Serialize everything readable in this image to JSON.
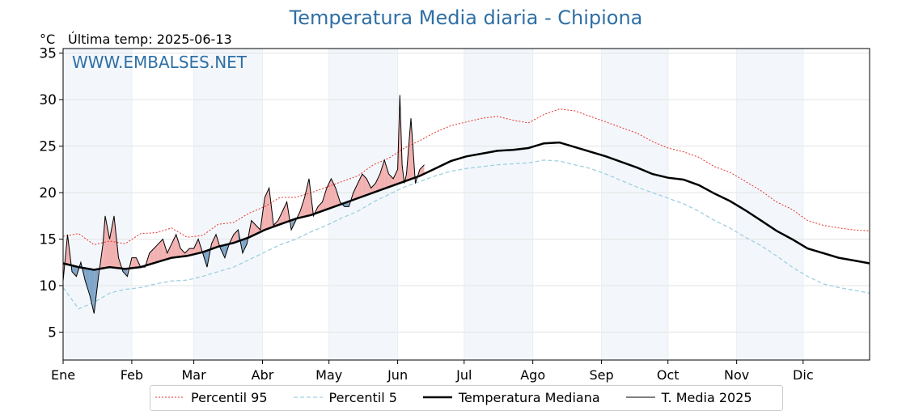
{
  "header": {
    "title": "Temperatura Media diaria - Chipiona",
    "unit": "°C",
    "last_temp": "Última temp: 2025-06-13",
    "watermark": "WWW.EMBALSES.NET"
  },
  "legend": {
    "p95": "Percentil 95",
    "p5": "Percentil 5",
    "median": "Temperatura Mediana",
    "current": "T. Media 2025"
  },
  "colors": {
    "p95": "#e8302a",
    "p5": "#9fd0e0",
    "median": "#000000",
    "current": "#000000",
    "above_fill": "#f2b1b1",
    "below_fill": "#7fa6c9",
    "month_band": "#f3f7fb",
    "title": "#2f6fa5"
  },
  "chart_data": {
    "type": "line",
    "title": "Temperatura Media diaria - Chipiona",
    "ylabel": "°C",
    "ylim": [
      2,
      35.5
    ],
    "xlim": [
      1,
      365
    ],
    "yticks": [
      5,
      10,
      15,
      20,
      25,
      30,
      35
    ],
    "months": [
      "Ene",
      "Feb",
      "Mar",
      "Abr",
      "May",
      "Jun",
      "Jul",
      "Ago",
      "Sep",
      "Oct",
      "Nov",
      "Dic"
    ],
    "month_start_days": [
      1,
      32,
      60,
      91,
      121,
      152,
      182,
      213,
      244,
      274,
      305,
      335
    ],
    "grid": true,
    "legend_position": "bottom",
    "series": [
      {
        "name": "Percentil 95",
        "style": "dotted",
        "x": [
          1,
          8,
          15,
          22,
          29,
          36,
          43,
          50,
          57,
          64,
          71,
          78,
          85,
          92,
          99,
          106,
          113,
          120,
          127,
          134,
          141,
          148,
          155,
          162,
          169,
          176,
          183,
          190,
          197,
          204,
          211,
          218,
          225,
          232,
          239,
          246,
          253,
          260,
          267,
          274,
          281,
          288,
          295,
          302,
          309,
          316,
          323,
          330,
          337,
          344,
          351,
          358,
          365
        ],
        "y": [
          15.3,
          15.6,
          14.4,
          14.8,
          14.5,
          15.6,
          15.7,
          16.2,
          15.2,
          15.4,
          16.6,
          16.8,
          17.8,
          18.5,
          19.5,
          19.5,
          20.0,
          20.6,
          21.2,
          21.8,
          23.0,
          23.7,
          24.8,
          25.6,
          26.5,
          27.2,
          27.6,
          28.0,
          28.2,
          27.8,
          27.5,
          28.4,
          29.0,
          28.8,
          28.2,
          27.6,
          27.0,
          26.4,
          25.5,
          24.8,
          24.4,
          23.8,
          22.8,
          22.2,
          21.2,
          20.2,
          19.0,
          18.2,
          17.0,
          16.5,
          16.2,
          16.0,
          15.9
        ]
      },
      {
        "name": "Percentil 5",
        "style": "dashed",
        "x": [
          1,
          8,
          15,
          22,
          29,
          36,
          43,
          50,
          57,
          64,
          71,
          78,
          85,
          92,
          99,
          106,
          113,
          120,
          127,
          134,
          141,
          148,
          155,
          162,
          169,
          176,
          183,
          190,
          197,
          204,
          211,
          218,
          225,
          232,
          239,
          246,
          253,
          260,
          267,
          274,
          281,
          288,
          295,
          302,
          309,
          316,
          323,
          330,
          337,
          344,
          351,
          358,
          365
        ],
        "y": [
          9.8,
          7.5,
          8.2,
          9.2,
          9.6,
          9.8,
          10.2,
          10.5,
          10.6,
          11.0,
          11.5,
          12.0,
          12.8,
          13.6,
          14.4,
          15.0,
          15.8,
          16.5,
          17.3,
          18.0,
          19.0,
          19.8,
          20.6,
          21.2,
          21.8,
          22.3,
          22.6,
          22.8,
          23.0,
          23.1,
          23.2,
          23.5,
          23.4,
          23.0,
          22.6,
          22.0,
          21.3,
          20.6,
          20.0,
          19.4,
          18.8,
          18.0,
          17.0,
          16.2,
          15.2,
          14.3,
          13.2,
          12.0,
          11.0,
          10.2,
          9.8,
          9.5,
          9.2
        ]
      },
      {
        "name": "Temperatura Mediana",
        "style": "solid-bold",
        "x": [
          1,
          8,
          15,
          22,
          29,
          36,
          43,
          50,
          57,
          64,
          71,
          78,
          85,
          92,
          99,
          106,
          113,
          120,
          127,
          134,
          141,
          148,
          155,
          162,
          169,
          176,
          183,
          190,
          197,
          204,
          211,
          218,
          225,
          232,
          239,
          246,
          253,
          260,
          267,
          274,
          281,
          288,
          295,
          302,
          309,
          316,
          323,
          330,
          337,
          344,
          351,
          358,
          365
        ],
        "y": [
          12.4,
          12.0,
          11.7,
          12.0,
          11.8,
          12.0,
          12.5,
          13.0,
          13.2,
          13.6,
          14.2,
          14.6,
          15.2,
          16.0,
          16.6,
          17.2,
          17.6,
          18.2,
          18.8,
          19.4,
          20.0,
          20.6,
          21.2,
          21.8,
          22.6,
          23.4,
          23.9,
          24.2,
          24.5,
          24.6,
          24.8,
          25.3,
          25.4,
          24.9,
          24.4,
          23.9,
          23.3,
          22.7,
          22.0,
          21.6,
          21.4,
          20.8,
          19.9,
          19.1,
          18.1,
          17.0,
          15.9,
          15.0,
          14.0,
          13.5,
          13.0,
          12.7,
          12.4
        ]
      },
      {
        "name": "T. Media 2025",
        "style": "solid-thin",
        "x": [
          1,
          3,
          5,
          7,
          9,
          11,
          13,
          15,
          17,
          19,
          20,
          22,
          24,
          26,
          28,
          30,
          32,
          34,
          36,
          38,
          40,
          42,
          44,
          46,
          48,
          50,
          52,
          54,
          56,
          58,
          60,
          62,
          64,
          66,
          68,
          70,
          72,
          74,
          76,
          78,
          80,
          82,
          84,
          86,
          88,
          90,
          92,
          94,
          96,
          98,
          100,
          102,
          104,
          106,
          108,
          110,
          112,
          114,
          116,
          118,
          120,
          122,
          124,
          126,
          128,
          130,
          132,
          134,
          136,
          138,
          140,
          142,
          144,
          146,
          148,
          150,
          151,
          152,
          153,
          154,
          155,
          156,
          158,
          160,
          162,
          164
        ],
        "y": [
          10.5,
          15.5,
          11.5,
          11.0,
          12.5,
          10.5,
          9.0,
          7.0,
          11.0,
          14.5,
          17.5,
          15.0,
          17.5,
          13.0,
          11.5,
          11.0,
          13.0,
          13.0,
          12.0,
          12.0,
          13.5,
          14.0,
          14.5,
          15.0,
          13.5,
          14.5,
          15.5,
          14.0,
          13.5,
          14.0,
          14.0,
          15.0,
          13.5,
          12.0,
          14.5,
          15.5,
          14.0,
          13.0,
          14.5,
          15.5,
          16.0,
          13.5,
          14.5,
          17.0,
          16.5,
          16.0,
          19.5,
          20.5,
          16.5,
          17.0,
          18.0,
          19.0,
          16.0,
          17.0,
          18.0,
          19.5,
          21.5,
          17.5,
          18.5,
          19.0,
          20.5,
          21.5,
          20.5,
          19.0,
          18.5,
          18.5,
          20.0,
          21.0,
          22.0,
          21.5,
          20.5,
          21.0,
          22.0,
          23.5,
          22.0,
          21.5,
          22.0,
          22.5,
          30.5,
          23.0,
          21.0,
          22.0,
          28.0,
          21.0,
          22.5,
          23.0
        ]
      }
    ]
  }
}
